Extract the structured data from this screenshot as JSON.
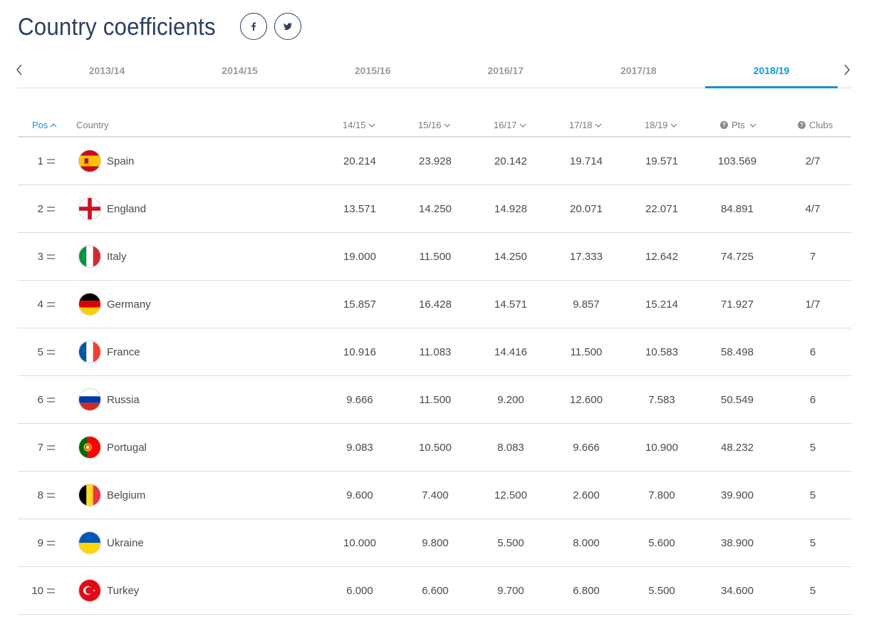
{
  "header": {
    "title": "Country coefficients"
  },
  "seasons": {
    "tabs": [
      "2013/14",
      "2014/15",
      "2015/16",
      "2016/17",
      "2017/18",
      "2018/19"
    ],
    "active_index": 5
  },
  "table": {
    "headers": {
      "pos": "Pos",
      "country": "Country",
      "y1": "14/15",
      "y2": "15/16",
      "y3": "16/17",
      "y4": "17/18",
      "y5": "18/19",
      "pts": "Pts",
      "clubs": "Clubs"
    },
    "rows": [
      {
        "pos": "1",
        "country": "Spain",
        "flag": "spain-flag-icon",
        "y1": "20.214",
        "y2": "23.928",
        "y3": "20.142",
        "y4": "19.714",
        "y5": "19.571",
        "pts": "103.569",
        "clubs": "2/7"
      },
      {
        "pos": "2",
        "country": "England",
        "flag": "england-flag-icon",
        "y1": "13.571",
        "y2": "14.250",
        "y3": "14.928",
        "y4": "20.071",
        "y5": "22.071",
        "pts": "84.891",
        "clubs": "4/7"
      },
      {
        "pos": "3",
        "country": "Italy",
        "flag": "italy-flag-icon",
        "y1": "19.000",
        "y2": "11.500",
        "y3": "14.250",
        "y4": "17.333",
        "y5": "12.642",
        "pts": "74.725",
        "clubs": "7"
      },
      {
        "pos": "4",
        "country": "Germany",
        "flag": "germany-flag-icon",
        "y1": "15.857",
        "y2": "16.428",
        "y3": "14.571",
        "y4": "9.857",
        "y5": "15.214",
        "pts": "71.927",
        "clubs": "1/7"
      },
      {
        "pos": "5",
        "country": "France",
        "flag": "france-flag-icon",
        "y1": "10.916",
        "y2": "11.083",
        "y3": "14.416",
        "y4": "11.500",
        "y5": "10.583",
        "pts": "58.498",
        "clubs": "6"
      },
      {
        "pos": "6",
        "country": "Russia",
        "flag": "russia-flag-icon",
        "y1": "9.666",
        "y2": "11.500",
        "y3": "9.200",
        "y4": "12.600",
        "y5": "7.583",
        "pts": "50.549",
        "clubs": "6"
      },
      {
        "pos": "7",
        "country": "Portugal",
        "flag": "portugal-flag-icon",
        "y1": "9.083",
        "y2": "10.500",
        "y3": "8.083",
        "y4": "9.666",
        "y5": "10.900",
        "pts": "48.232",
        "clubs": "5"
      },
      {
        "pos": "8",
        "country": "Belgium",
        "flag": "belgium-flag-icon",
        "y1": "9.600",
        "y2": "7.400",
        "y3": "12.500",
        "y4": "2.600",
        "y5": "7.800",
        "pts": "39.900",
        "clubs": "5"
      },
      {
        "pos": "9",
        "country": "Ukraine",
        "flag": "ukraine-flag-icon",
        "y1": "10.000",
        "y2": "9.800",
        "y3": "5.500",
        "y4": "8.000",
        "y5": "5.600",
        "pts": "38.900",
        "clubs": "5"
      },
      {
        "pos": "10",
        "country": "Turkey",
        "flag": "turkey-flag-icon",
        "y1": "6.000",
        "y2": "6.600",
        "y3": "9.700",
        "y4": "6.800",
        "y5": "5.500",
        "pts": "34.600",
        "clubs": "5"
      }
    ]
  },
  "colors": {
    "title": "#2b3f64",
    "accent": "#1a8fd6",
    "muted": "#9b9b9b"
  }
}
